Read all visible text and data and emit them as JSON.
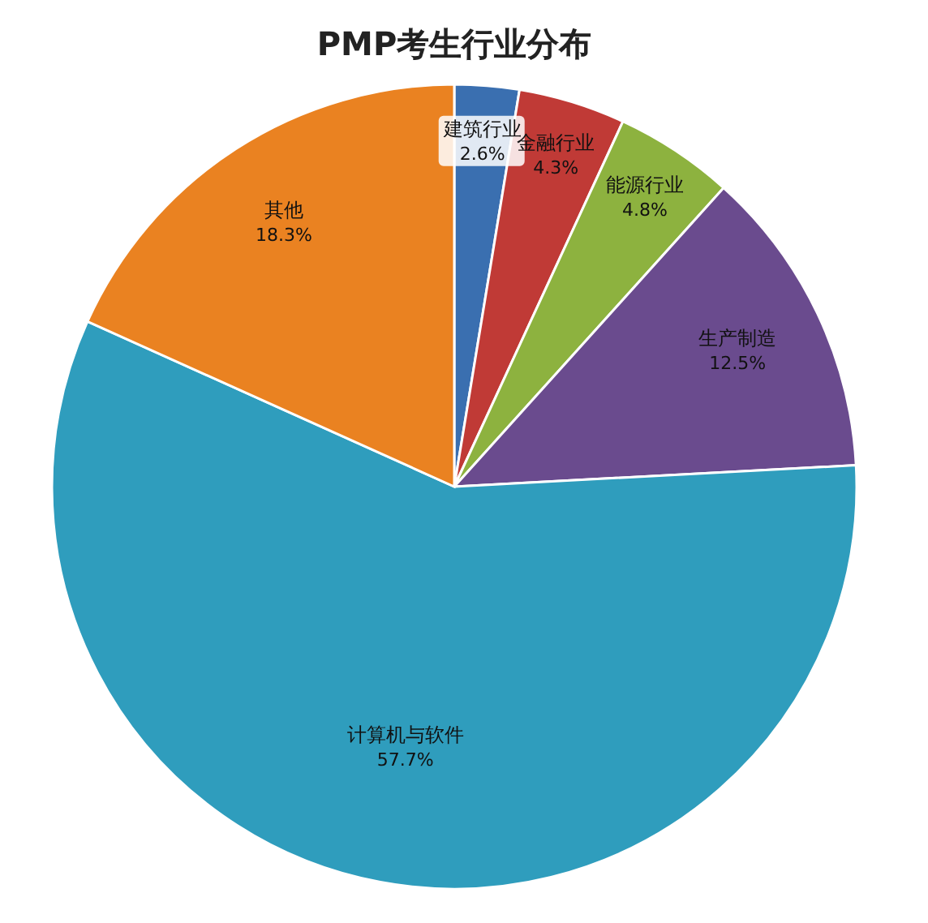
{
  "chart_data": {
    "type": "pie",
    "title": "PMP考生行业分布",
    "categories": [
      "建筑行业",
      "金融行业",
      "能源行业",
      "生产制造",
      "计算机与软件",
      "其他"
    ],
    "values": [
      2.6,
      4.3,
      4.8,
      12.5,
      57.7,
      18.3
    ],
    "colors": [
      "#3a6fb0",
      "#c03a36",
      "#8db23f",
      "#6a4b8e",
      "#2f9dbd",
      "#ea8221"
    ],
    "value_labels": [
      "2.6%",
      "4.3%",
      "4.8%",
      "12.5%",
      "57.7%",
      "18.3%"
    ],
    "legend": false
  }
}
